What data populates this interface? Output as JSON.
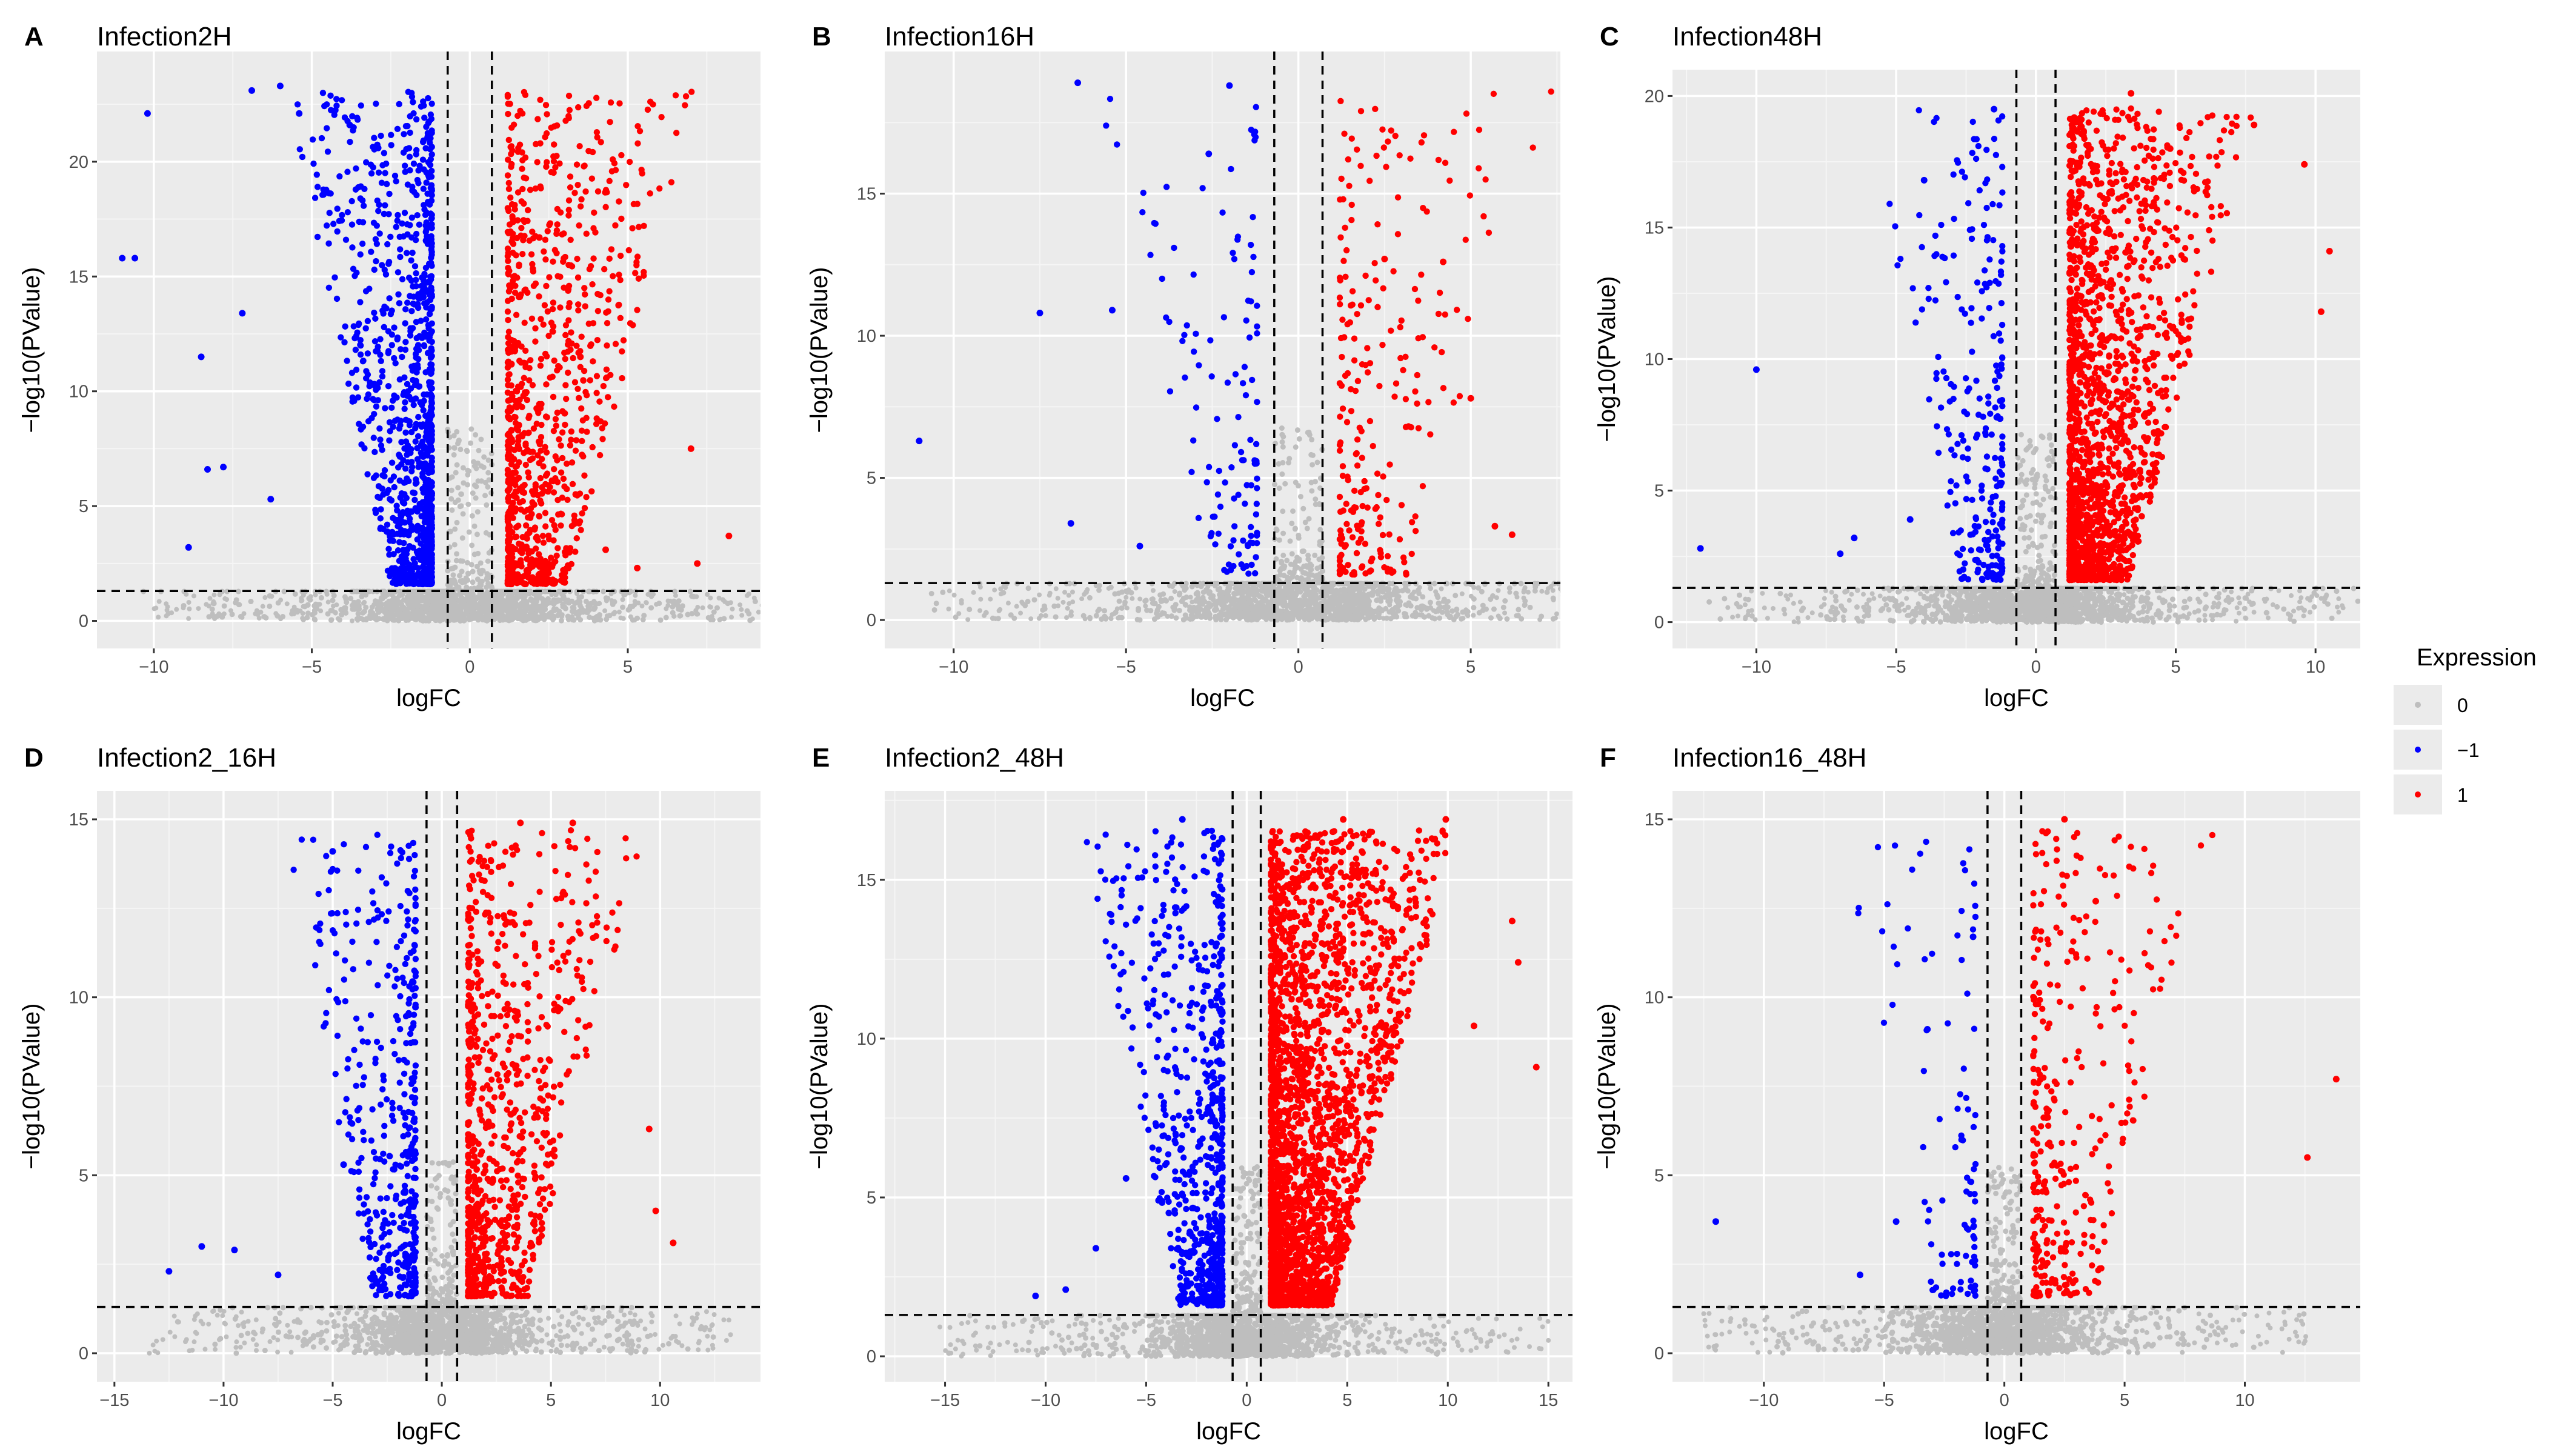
{
  "figure": {
    "legend": {
      "title": "Expression",
      "items": [
        {
          "label": "0",
          "color": "#bebebe"
        },
        {
          "label": "−1",
          "color": "#0000ff"
        },
        {
          "label": "1",
          "color": "#ff0000"
        }
      ]
    }
  },
  "colors": {
    "panel_bg": "#ebebeb",
    "grid_major": "#ffffff",
    "up": "#ff0000",
    "down": "#0000ff",
    "ns": "#bebebe"
  },
  "chart_data": [
    {
      "type": "scatter",
      "letter": "A",
      "title": "Infection2H",
      "xlabel": "logFC",
      "ylabel": "−log10(PValue)",
      "xlim": [
        -11.8,
        9.2
      ],
      "ylim": [
        -1.2,
        24.8
      ],
      "xticks": [
        -10,
        -5,
        0,
        5
      ],
      "xtick_labels": [
        "−10",
        "−5",
        "0",
        "5"
      ],
      "yticks": [
        0,
        5,
        10,
        15,
        20
      ],
      "ytick_labels": [
        "0",
        "5",
        "10",
        "15",
        "20"
      ],
      "vlines": [
        -0.7,
        0.7
      ],
      "hline": 1.3,
      "down_count": 1050,
      "up_count": 900,
      "labeled_points": {
        "down": [
          [
            -11.0,
            15.8
          ],
          [
            -10.6,
            15.8
          ],
          [
            -10.2,
            22.1
          ],
          [
            -8.5,
            11.5
          ],
          [
            -8.9,
            3.2
          ],
          [
            -8.3,
            6.6
          ],
          [
            -7.8,
            6.7
          ],
          [
            -6.9,
            23.1
          ],
          [
            -6.0,
            23.3
          ],
          [
            -5.4,
            22.1
          ],
          [
            -3.8,
            21.6
          ],
          [
            -2.9,
            20.6
          ],
          [
            -7.2,
            13.4
          ],
          [
            -6.3,
            5.3
          ]
        ],
        "up": [
          [
            7.0,
            7.5
          ],
          [
            8.2,
            3.7
          ],
          [
            7.2,
            2.5
          ],
          [
            5.3,
            2.3
          ],
          [
            4.3,
            3.1
          ],
          [
            3.5,
            11.5
          ],
          [
            2.2,
            16.7
          ]
        ]
      }
    },
    {
      "type": "scatter",
      "letter": "B",
      "title": "Infection16H",
      "xlabel": "logFC",
      "ylabel": "−log10(PValue)",
      "xlim": [
        -12.0,
        7.6
      ],
      "ylim": [
        -1.0,
        20.0
      ],
      "xticks": [
        -10,
        -5,
        0,
        5
      ],
      "xtick_labels": [
        "−10",
        "−5",
        "0",
        "5"
      ],
      "yticks": [
        0,
        5,
        10,
        15
      ],
      "ytick_labels": [
        "0",
        "5",
        "10",
        "15"
      ],
      "vlines": [
        -0.7,
        0.7
      ],
      "hline": 1.3,
      "down_count": 120,
      "up_count": 230,
      "labeled_points": {
        "down": [
          [
            -11.0,
            6.3
          ],
          [
            -7.5,
            10.8
          ],
          [
            -6.4,
            18.9
          ],
          [
            -5.4,
            10.9
          ],
          [
            -6.6,
            3.4
          ],
          [
            -2.0,
            18.8
          ],
          [
            -2.6,
            16.4
          ],
          [
            -4.6,
            2.6
          ]
        ],
        "up": [
          [
            4.2,
            12.6
          ],
          [
            2.5,
            12.7
          ],
          [
            5.0,
            7.8
          ],
          [
            5.7,
            3.3
          ],
          [
            6.2,
            3.0
          ]
        ]
      }
    },
    {
      "type": "scatter",
      "letter": "C",
      "title": "Infection48H",
      "xlabel": "logFC",
      "ylabel": "−log10(PValue)",
      "xlim": [
        -13.0,
        11.6
      ],
      "ylim": [
        -1.0,
        21.0
      ],
      "xticks": [
        -10,
        -5,
        0,
        5,
        10
      ],
      "xtick_labels": [
        "−10",
        "−5",
        "0",
        "5",
        "10"
      ],
      "yticks": [
        0,
        5,
        10,
        15,
        20
      ],
      "ytick_labels": [
        "0",
        "5",
        "10",
        "15",
        "20"
      ],
      "vlines": [
        -0.7,
        0.7
      ],
      "hline": 1.3,
      "down_count": 260,
      "up_count": 1700,
      "labeled_points": {
        "down": [
          [
            -12.0,
            2.8
          ],
          [
            -10.0,
            9.6
          ],
          [
            -6.5,
            3.2
          ],
          [
            -7.0,
            2.6
          ],
          [
            -4.5,
            3.9
          ],
          [
            -4.0,
            16.8
          ],
          [
            -1.5,
            19.5
          ]
        ],
        "up": [
          [
            3.4,
            20.1
          ],
          [
            7.8,
            18.9
          ],
          [
            9.6,
            17.4
          ],
          [
            10.5,
            14.1
          ],
          [
            10.2,
            11.8
          ],
          [
            4.8,
            18.0
          ]
        ]
      }
    },
    {
      "type": "scatter",
      "letter": "D",
      "title": "Infection2_16H",
      "xlabel": "logFC",
      "ylabel": "−log10(PValue)",
      "xlim": [
        -15.8,
        14.6
      ],
      "ylim": [
        -0.8,
        15.8
      ],
      "xticks": [
        -15,
        -10,
        -5,
        0,
        5,
        10
      ],
      "xtick_labels": [
        "−15",
        "−10",
        "−5",
        "0",
        "5",
        "10"
      ],
      "yticks": [
        0,
        5,
        10,
        15
      ],
      "ytick_labels": [
        "0",
        "5",
        "10",
        "15"
      ],
      "vlines": [
        -0.7,
        0.7
      ],
      "hline": 1.3,
      "down_count": 420,
      "up_count": 800,
      "labeled_points": {
        "down": [
          [
            -12.5,
            2.3
          ],
          [
            -11.0,
            3.0
          ],
          [
            -9.5,
            2.9
          ],
          [
            -7.5,
            2.2
          ],
          [
            -5.0,
            14.1
          ],
          [
            -4.5,
            5.3
          ]
        ],
        "up": [
          [
            9.8,
            4.0
          ],
          [
            9.5,
            6.3
          ],
          [
            10.6,
            3.1
          ],
          [
            6.0,
            14.9
          ],
          [
            3.6,
            14.9
          ]
        ]
      }
    },
    {
      "type": "scatter",
      "letter": "E",
      "title": "Infection2_48H",
      "xlabel": "logFC",
      "ylabel": "−log10(PValue)",
      "xlim": [
        -18.0,
        16.2
      ],
      "ylim": [
        -0.8,
        17.8
      ],
      "xticks": [
        -15,
        -10,
        -5,
        0,
        5,
        10,
        15
      ],
      "xtick_labels": [
        "−15",
        "−10",
        "−5",
        "0",
        "5",
        "10",
        "15"
      ],
      "yticks": [
        0,
        5,
        10,
        15
      ],
      "ytick_labels": [
        "0",
        "5",
        "10",
        "15"
      ],
      "vlines": [
        -0.7,
        0.7
      ],
      "hline": 1.3,
      "down_count": 700,
      "up_count": 2600,
      "labeled_points": {
        "down": [
          [
            -10.5,
            1.9
          ],
          [
            -9.0,
            2.1
          ],
          [
            -7.5,
            3.4
          ],
          [
            -6.0,
            5.6
          ],
          [
            -3.2,
            16.9
          ]
        ],
        "up": [
          [
            9.9,
            16.9
          ],
          [
            13.2,
            13.7
          ],
          [
            14.4,
            9.1
          ],
          [
            13.5,
            12.4
          ],
          [
            11.3,
            10.4
          ],
          [
            4.8,
            16.9
          ]
        ]
      }
    },
    {
      "type": "scatter",
      "letter": "F",
      "title": "Infection16_48H",
      "xlabel": "logFC",
      "ylabel": "−log10(PValue)",
      "xlim": [
        -13.8,
        14.8
      ],
      "ylim": [
        -0.8,
        15.8
      ],
      "xticks": [
        -10,
        -5,
        0,
        5,
        10
      ],
      "xtick_labels": [
        "−10",
        "−5",
        "0",
        "5",
        "10"
      ],
      "yticks": [
        0,
        5,
        10,
        15
      ],
      "ytick_labels": [
        "0",
        "5",
        "10",
        "15"
      ],
      "vlines": [
        -0.7,
        0.7
      ],
      "hline": 1.3,
      "down_count": 95,
      "up_count": 320,
      "labeled_points": {
        "down": [
          [
            -12.0,
            3.7
          ],
          [
            -6.0,
            2.2
          ],
          [
            -4.5,
            3.7
          ],
          [
            -3.2,
            9.1
          ],
          [
            -1.3,
            11.7
          ]
        ],
        "up": [
          [
            2.5,
            15.0
          ],
          [
            13.8,
            7.7
          ],
          [
            12.6,
            5.5
          ],
          [
            3.8,
            12.7
          ],
          [
            2.8,
            11.3
          ]
        ]
      }
    }
  ]
}
